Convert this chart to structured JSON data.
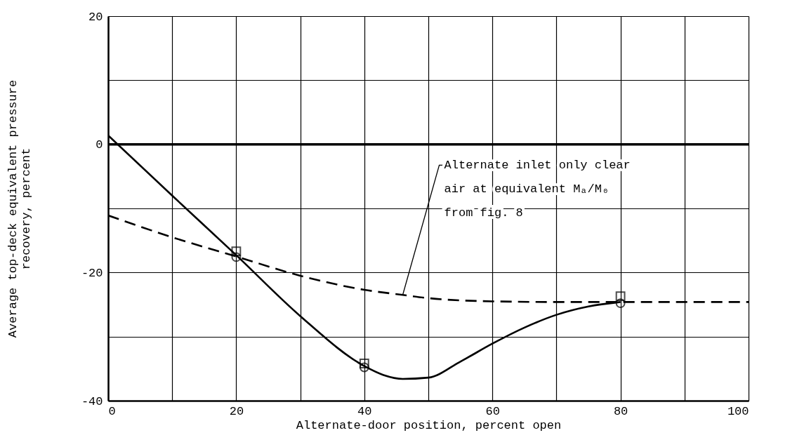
{
  "chart_data": {
    "type": "line",
    "xlabel": "Alternate-door position, percent open",
    "ylabel": "Average top-deck equivalent pressure\nrecovery, percent",
    "xlim": [
      0,
      100
    ],
    "ylim": [
      -40,
      20
    ],
    "xticks": [
      0,
      {
        "value": 10,
        "label": null
      },
      20,
      {
        "value": 30,
        "label": null
      },
      40,
      {
        "value": 50,
        "label": null
      },
      60,
      {
        "value": 70,
        "label": null
      },
      80,
      {
        "value": 90,
        "label": null
      },
      100
    ],
    "yticks": [
      -40,
      {
        "value": -30,
        "label": null
      },
      -20,
      {
        "value": -10,
        "label": null
      },
      0,
      {
        "value": 10,
        "label": null
      },
      20
    ],
    "grid": true,
    "series": [
      {
        "line_style": "solid",
        "color": "#000000",
        "x": [
          0,
          10,
          20,
          30,
          40,
          43,
          46,
          50,
          55,
          60,
          65,
          70,
          75,
          80
        ],
        "values": [
          1.4,
          -8,
          -17.3,
          -26.8,
          -34.6,
          -36,
          -36.6,
          -36.4,
          -33.9,
          -31.1,
          -28.6,
          -26.6,
          -25.3,
          -24.6
        ]
      },
      {
        "line_style": "dashed",
        "color": "#000000",
        "x": [
          0,
          10,
          20,
          30,
          40,
          46,
          50,
          60,
          70,
          80,
          90,
          100
        ],
        "values": [
          -11.1,
          -14.5,
          -17.5,
          -20.5,
          -22.7,
          -23.5,
          -24.0,
          -24.5,
          -24.6,
          -24.6,
          -24.6,
          -24.6
        ]
      },
      {
        "type": "scatter",
        "marker": "square",
        "color": "#000000",
        "x": [
          20,
          40,
          80
        ],
        "values": [
          -16.7,
          -34.2,
          -23.7
        ]
      },
      {
        "type": "scatter",
        "marker": "circle",
        "color": "#000000",
        "x": [
          20,
          40,
          80
        ],
        "values": [
          -17.6,
          -34.8,
          -24.8
        ]
      }
    ],
    "ref_lines": [
      {
        "axis": "y",
        "value": 0,
        "color": "#000000"
      }
    ],
    "annotations": [
      {
        "text": "Alternate inlet only clear\n  air at equivalent  Mₐ/M₀\n  from fig. 8",
        "x": 46,
        "y": -23.5
      }
    ]
  }
}
